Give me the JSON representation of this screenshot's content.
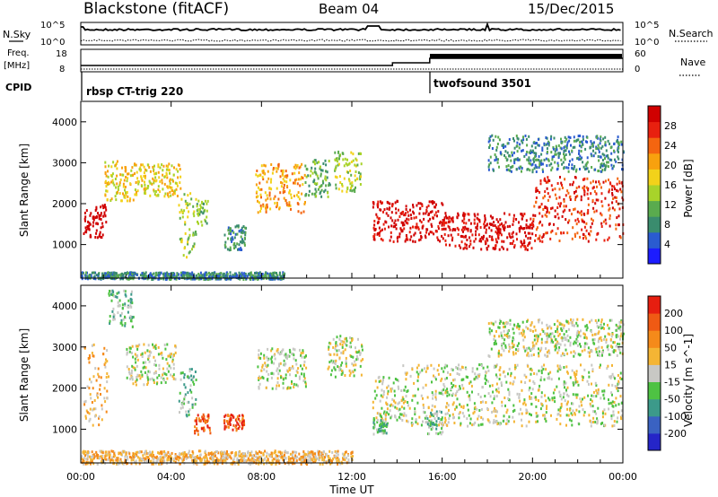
{
  "header": {
    "station": "Blackstone (fitACF)",
    "beam": "Beam 04",
    "date": "15/Dec/2015"
  },
  "top_panels": {
    "nsky_label": "N.Sky",
    "nsearch_label": "N.Search",
    "nsky_ticks": [
      "10^5",
      "10^0"
    ],
    "nsearch_ticks": [
      "10^5",
      "10^0"
    ],
    "freq_label_1": "Freq.",
    "freq_label_2": "[MHz]",
    "freq_ticks": [
      "18",
      "8"
    ],
    "nave_label": "Nave",
    "nave_ticks": [
      "60",
      "0"
    ],
    "cpid_label": "CPID",
    "cpid_segments": [
      {
        "name": "rbsp CT-trig 220",
        "start_hour": 0
      },
      {
        "name": "twofsound 3501",
        "start_hour": 15.45
      }
    ],
    "freq_line": [
      {
        "hour": 0,
        "mhz": 10.5
      },
      {
        "hour": 13.8,
        "mhz": 10.5
      },
      {
        "hour": 13.8,
        "mhz": 12.0
      },
      {
        "hour": 15.45,
        "mhz": 12.0
      },
      {
        "hour": 15.45,
        "mhz": 14.5
      },
      {
        "hour": 24,
        "mhz": 14.5
      }
    ]
  },
  "x_axis": {
    "label": "Time UT",
    "ticks": [
      "00:00",
      "04:00",
      "08:00",
      "12:00",
      "16:00",
      "20:00",
      "00:00"
    ]
  },
  "power_colorbar": {
    "label": "Power [dB]",
    "tick_labels": [
      "4",
      "8",
      "12",
      "16",
      "20",
      "24",
      "28"
    ],
    "colors": [
      "#1c1cff",
      "#2a5bd0",
      "#3a8c6e",
      "#5aab4e",
      "#a8d32a",
      "#f2d21a",
      "#f8a10e",
      "#f46510",
      "#e8200f",
      "#d00000"
    ]
  },
  "velocity_colorbar": {
    "label": "Velocity [m s^-1]",
    "tick_labels": [
      "200",
      "100",
      "50",
      "15",
      "-15",
      "-50",
      "-100",
      "-200"
    ],
    "colors": [
      "#2525c8",
      "#3a62c2",
      "#3c9a8a",
      "#4ec243",
      "#c8c8c4",
      "#f4b534",
      "#f58a1a",
      "#ef5a14",
      "#e61e10"
    ]
  },
  "chart_data": [
    {
      "type": "heatmap",
      "name": "power",
      "ylabel": "Slant Range [km]",
      "xlabel": "",
      "xlim_hours": [
        0,
        24
      ],
      "ylim_km": [
        180,
        4500
      ],
      "y_ticks": [
        1000,
        2000,
        3000,
        4000
      ],
      "legend_placement": "right",
      "bands": [
        {
          "t0": 0.1,
          "t1": 1.1,
          "r0": 1200,
          "r1": 2000,
          "level": 10
        },
        {
          "t0": 1.0,
          "t1": 2.4,
          "r0": 2100,
          "r1": 3100,
          "level": 5
        },
        {
          "t0": 2.4,
          "t1": 4.4,
          "r0": 2200,
          "r1": 3000,
          "level": 5
        },
        {
          "t0": 4.3,
          "t1": 5.1,
          "r0": 700,
          "r1": 2300,
          "level": 4
        },
        {
          "t0": 5.1,
          "t1": 5.6,
          "r0": 1500,
          "r1": 2100,
          "level": 3
        },
        {
          "t0": 6.3,
          "t1": 7.3,
          "r0": 900,
          "r1": 1500,
          "level": 2
        },
        {
          "t0": 7.7,
          "t1": 9.9,
          "r0": 1800,
          "r1": 3000,
          "level": 6
        },
        {
          "t0": 9.9,
          "t1": 11.0,
          "r0": 2200,
          "r1": 3100,
          "level": 3
        },
        {
          "t0": 11.2,
          "t1": 12.4,
          "r0": 2300,
          "r1": 3300,
          "level": 4
        },
        {
          "t0": 12.9,
          "t1": 16.0,
          "r0": 1100,
          "r1": 2100,
          "level": 9
        },
        {
          "t0": 16.0,
          "t1": 20.0,
          "r0": 900,
          "r1": 1800,
          "level": 9
        },
        {
          "t0": 20.0,
          "t1": 24.0,
          "r0": 1100,
          "r1": 2700,
          "level": 8
        },
        {
          "t0": 18.0,
          "t1": 24.0,
          "r0": 2800,
          "r1": 3700,
          "level": 2
        },
        {
          "t0": 0.0,
          "t1": 9.0,
          "r0": 180,
          "r1": 350,
          "level": 2
        }
      ]
    },
    {
      "type": "heatmap",
      "name": "velocity",
      "ylabel": "Slant Range [km]",
      "xlabel": "Time UT",
      "xlim_hours": [
        0,
        24
      ],
      "ylim_km": [
        180,
        4500
      ],
      "y_ticks": [
        1000,
        2000,
        3000,
        4000
      ],
      "legend_placement": "right",
      "bands": [
        {
          "t0": 0.1,
          "t1": 1.2,
          "r0": 1100,
          "r1": 3100,
          "level": 5
        },
        {
          "t0": 1.2,
          "t1": 2.3,
          "r0": 3500,
          "r1": 4400,
          "level": 3
        },
        {
          "t0": 2.0,
          "t1": 4.2,
          "r0": 2100,
          "r1": 3100,
          "level": 4
        },
        {
          "t0": 4.3,
          "t1": 5.1,
          "r0": 1300,
          "r1": 2500,
          "level": 3
        },
        {
          "t0": 5.0,
          "t1": 5.7,
          "r0": 900,
          "r1": 1400,
          "level": 7
        },
        {
          "t0": 6.3,
          "t1": 7.2,
          "r0": 1000,
          "r1": 1400,
          "level": 7
        },
        {
          "t0": 7.8,
          "t1": 10.0,
          "r0": 2000,
          "r1": 3000,
          "level": 4
        },
        {
          "t0": 10.9,
          "t1": 12.5,
          "r0": 2300,
          "r1": 3300,
          "level": 4
        },
        {
          "t0": 12.9,
          "t1": 14.2,
          "r0": 1200,
          "r1": 2300,
          "level": 4
        },
        {
          "t0": 12.9,
          "t1": 13.6,
          "r0": 900,
          "r1": 1300,
          "level": 3
        },
        {
          "t0": 14.2,
          "t1": 24.0,
          "r0": 1100,
          "r1": 2600,
          "level": 4
        },
        {
          "t0": 15.3,
          "t1": 16.0,
          "r0": 900,
          "r1": 1500,
          "level": 3
        },
        {
          "t0": 18.0,
          "t1": 24.0,
          "r0": 2800,
          "r1": 3700,
          "level": 4
        },
        {
          "t0": 0.0,
          "t1": 12.0,
          "r0": 180,
          "r1": 500,
          "level": 5
        }
      ]
    }
  ]
}
